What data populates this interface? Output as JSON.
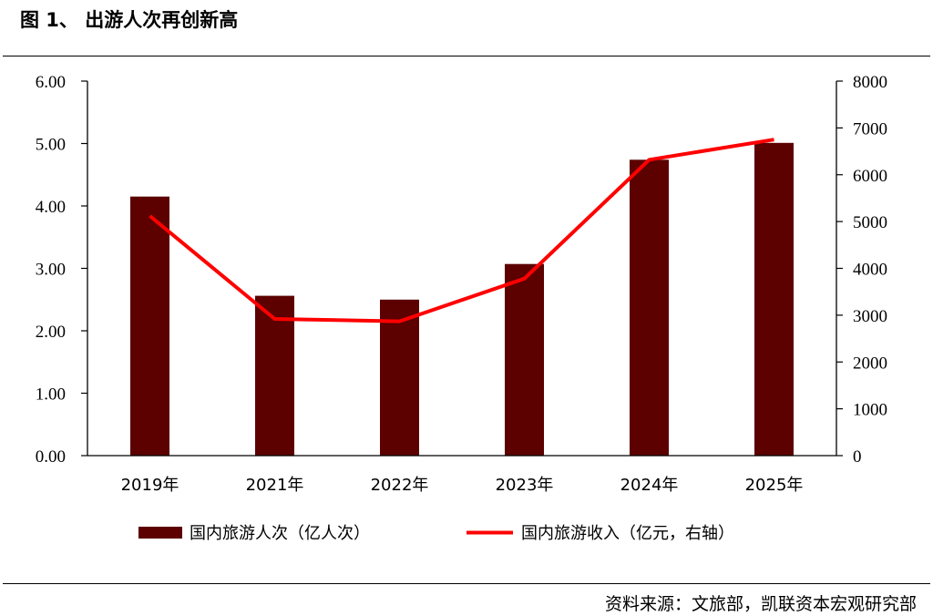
{
  "figure": {
    "title": "图 1、 出游人次再创新高",
    "source": "资料来源：文旅部，凯联资本宏观研究部"
  },
  "colors": {
    "bar": "#5c0000",
    "line": "#ff0000",
    "axis": "#000000"
  },
  "chart_data": {
    "type": "bar",
    "categories": [
      "2019年",
      "2021年",
      "2022年",
      "2023年",
      "2024年",
      "2025年"
    ],
    "series": [
      {
        "name": "国内旅游人次（亿人次）",
        "type": "bar",
        "axis": "left",
        "values": [
          4.15,
          2.56,
          2.5,
          3.07,
          4.74,
          5.01
        ]
      },
      {
        "name": "国内旅游收入（亿元，右轴）",
        "type": "line",
        "axis": "right",
        "values": [
          5120,
          2920,
          2870,
          3780,
          6320,
          6750
        ]
      }
    ],
    "y_left": {
      "ylim": [
        0,
        6
      ],
      "ticks": [
        "0.00",
        "1.00",
        "2.00",
        "3.00",
        "4.00",
        "5.00",
        "6.00"
      ]
    },
    "y_right": {
      "ylim": [
        0,
        8000
      ],
      "ticks": [
        "0",
        "1000",
        "2000",
        "3000",
        "4000",
        "5000",
        "6000",
        "7000",
        "8000"
      ]
    },
    "grid": false,
    "legend": "bottom"
  }
}
